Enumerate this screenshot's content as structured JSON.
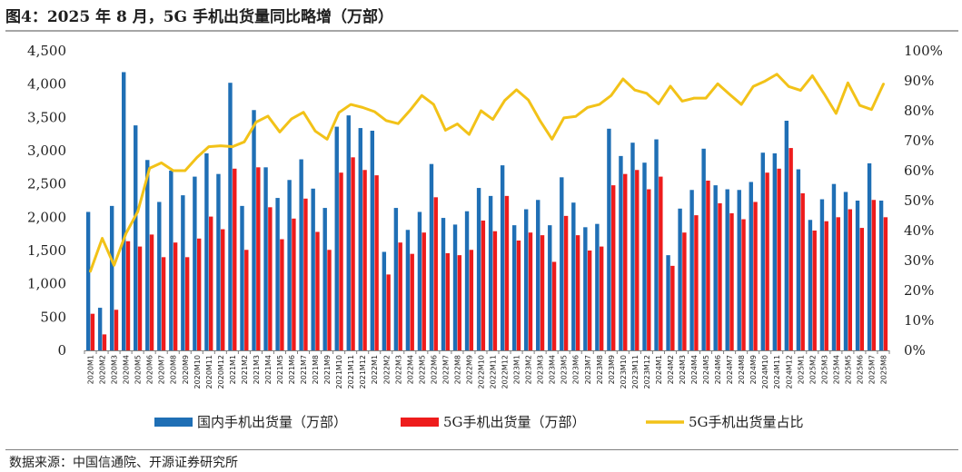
{
  "header": {
    "title": "图4：2025 年 8 月，5G 手机出货量同比略增（万部）"
  },
  "footer": {
    "source": "数据来源：中国信通院、开源证券研究所"
  },
  "colors": {
    "domestic": "#1f6fb5",
    "fiveg": "#ee1c1c",
    "share": "#f2c218",
    "axis": "#7f7f7f"
  },
  "chart_data": {
    "type": "bar",
    "categories": [
      "2020M1",
      "2020M2",
      "2020M3",
      "2020M4",
      "2020M5",
      "2020M6",
      "2020M7",
      "2020M8",
      "2020M9",
      "2020M10",
      "2020M11",
      "2020M12",
      "2021M1",
      "2021M2",
      "2021M3",
      "2021M4",
      "2021M5",
      "2021M6",
      "2021M7",
      "2021M8",
      "2021M9",
      "2021M10",
      "2021M11",
      "2021M12",
      "2022M1",
      "2022M2",
      "2022M3",
      "2022M4",
      "2022M5",
      "2022M6",
      "2022M7",
      "2022M8",
      "2022M9",
      "2022M10",
      "2022M11",
      "2022M12",
      "2023M1",
      "2023M2",
      "2023M3",
      "2023M4",
      "2023M5",
      "2023M6",
      "2023M7",
      "2023M8",
      "2023M9",
      "2023M10",
      "2023M11",
      "2023M12",
      "2024M1",
      "2024M2",
      "2024M3",
      "2024M4",
      "2024M5",
      "2024M6",
      "2024M7",
      "2024M8",
      "2024M9",
      "2024M10",
      "2024M11",
      "2024M12",
      "2025M1",
      "2025M2",
      "2025M3",
      "2025M4",
      "2025M5",
      "2025M6",
      "2025M7",
      "2025M8"
    ],
    "series": [
      {
        "name": "国内手机出货量（万部）",
        "type": "bar",
        "axis": "left",
        "values": [
          2080,
          640,
          2170,
          4180,
          3380,
          2860,
          2230,
          2700,
          2330,
          2610,
          2960,
          2650,
          4020,
          2170,
          3610,
          2750,
          2290,
          2560,
          2870,
          2430,
          2140,
          3360,
          3530,
          3340,
          3300,
          1480,
          2140,
          1810,
          2080,
          2800,
          1990,
          1890,
          2090,
          2440,
          2320,
          2780,
          1880,
          2120,
          2260,
          1880,
          2600,
          2220,
          1850,
          1900,
          3330,
          2920,
          3120,
          2820,
          3170,
          1430,
          2130,
          2410,
          3030,
          2480,
          2420,
          2410,
          2530,
          2970,
          2960,
          3450,
          2720,
          1960,
          2270,
          2500,
          2380,
          2250,
          2810,
          2250
        ]
      },
      {
        "name": "5G手机出货量（万部）",
        "type": "bar",
        "axis": "left",
        "values": [
          550,
          240,
          610,
          1640,
          1560,
          1740,
          1400,
          1620,
          1400,
          1680,
          2010,
          1820,
          2730,
          1510,
          2750,
          2150,
          1670,
          1980,
          2280,
          1780,
          1510,
          2670,
          2900,
          2710,
          2630,
          1140,
          1620,
          1450,
          1770,
          2300,
          1460,
          1430,
          1510,
          1950,
          1790,
          2320,
          1650,
          1770,
          1730,
          1330,
          2020,
          1730,
          1500,
          1560,
          2480,
          2650,
          2710,
          2420,
          2610,
          1270,
          1770,
          2030,
          2550,
          2210,
          2060,
          1970,
          2230,
          2670,
          2730,
          3040,
          2360,
          1800,
          1940,
          2000,
          2120,
          1840,
          2260,
          2000
        ]
      },
      {
        "name": "5G手机出货量占比",
        "type": "line",
        "axis": "right",
        "values": [
          0.264,
          0.374,
          0.284,
          0.39,
          0.463,
          0.608,
          0.626,
          0.6,
          0.6,
          0.644,
          0.68,
          0.683,
          0.68,
          0.696,
          0.762,
          0.782,
          0.729,
          0.773,
          0.795,
          0.732,
          0.705,
          0.794,
          0.821,
          0.811,
          0.797,
          0.767,
          0.757,
          0.801,
          0.851,
          0.821,
          0.735,
          0.756,
          0.721,
          0.8,
          0.771,
          0.834,
          0.87,
          0.836,
          0.766,
          0.705,
          0.776,
          0.781,
          0.811,
          0.821,
          0.851,
          0.906,
          0.869,
          0.858,
          0.823,
          0.882,
          0.832,
          0.842,
          0.842,
          0.89,
          0.855,
          0.821,
          0.881,
          0.899,
          0.922,
          0.881,
          0.868,
          0.917,
          0.856,
          0.791,
          0.893,
          0.818,
          0.804,
          0.889
        ]
      }
    ],
    "y_left": {
      "min": 0,
      "max": 4500,
      "step": 500,
      "tick_labels": [
        "0",
        "500",
        "1,000",
        "1,500",
        "2,000",
        "2,500",
        "3,000",
        "3,500",
        "4,000",
        "4,500"
      ]
    },
    "y_right": {
      "min": 0,
      "max": 1,
      "step": 0.1,
      "tick_labels": [
        "0%",
        "10%",
        "20%",
        "30%",
        "40%",
        "50%",
        "60%",
        "70%",
        "80%",
        "90%",
        "100%"
      ]
    },
    "grid": false,
    "legend": {
      "placement": "bottom",
      "entries": [
        "国内手机出货量（万部）",
        "5G手机出货量（万部）",
        "5G手机出货量占比"
      ]
    }
  }
}
